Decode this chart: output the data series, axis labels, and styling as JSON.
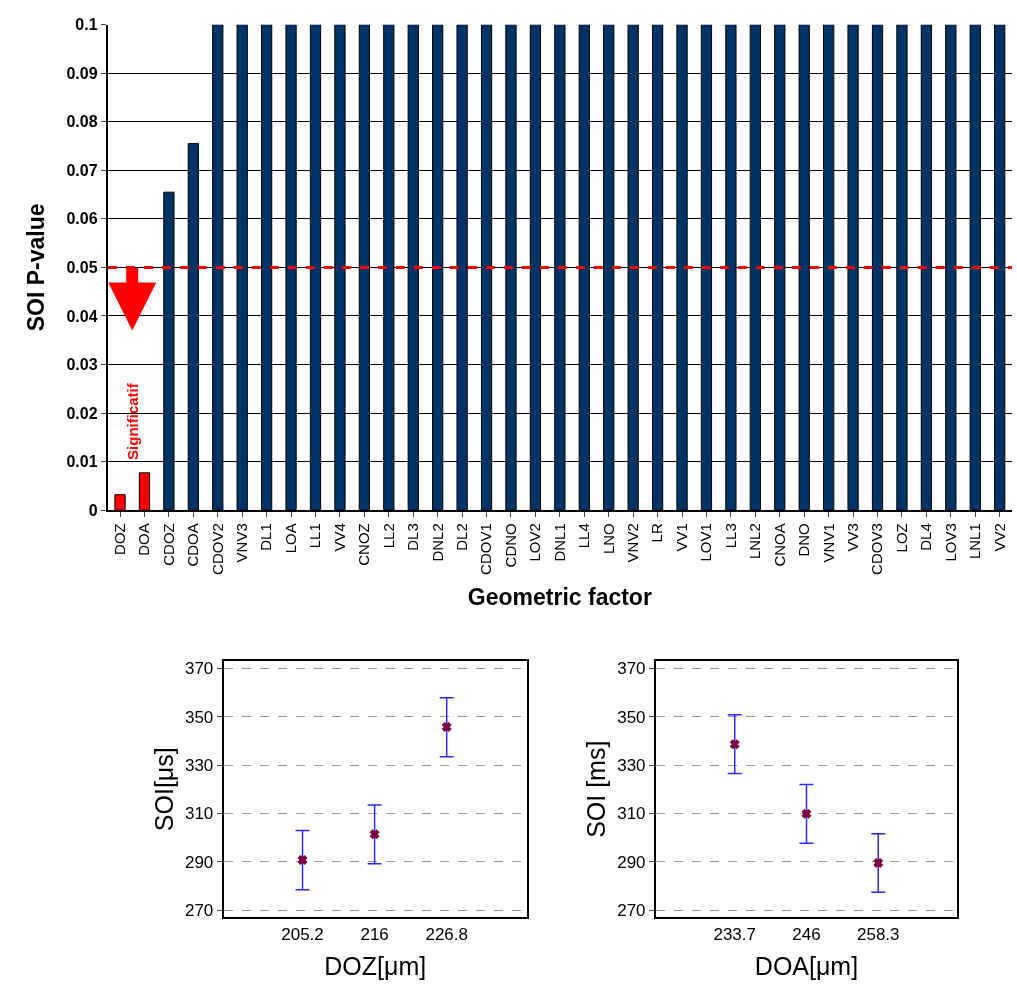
{
  "chart_data": [
    {
      "type": "bar",
      "xlabel": "Geometric factor",
      "ylabel": "SOI P-value",
      "categories": [
        "DOZ",
        "DOA",
        "CDOZ",
        "CDOA",
        "CDOV2",
        "VNV3",
        "DL1",
        "LOA",
        "LL1",
        "VV4",
        "CNOZ",
        "LL2",
        "DL3",
        "DNL2",
        "DL2",
        "CDOV1",
        "CDNO",
        "LOV2",
        "DNL1",
        "LL4",
        "LNO",
        "VNV2",
        "LR",
        "VV1",
        "LOV1",
        "LL3",
        "LNL2",
        "CNOA",
        "DNO",
        "VNV1",
        "VV3",
        "CDOV3",
        "LOZ",
        "DL4",
        "LOV3",
        "LNL1",
        "VV2"
      ],
      "values": [
        0.0032,
        0.0077,
        0.0655,
        0.0755,
        0.1,
        0.1,
        0.1,
        0.1,
        0.1,
        0.1,
        0.1,
        0.1,
        0.1,
        0.1,
        0.1,
        0.1,
        0.1,
        0.1,
        0.1,
        0.1,
        0.1,
        0.1,
        0.1,
        0.1,
        0.1,
        0.1,
        0.1,
        0.1,
        0.1,
        0.1,
        0.1,
        0.1,
        0.1,
        0.1,
        0.1,
        0.1,
        0.1
      ],
      "colors": [
        "#ff0000",
        "#ff0000",
        "#003366",
        "#003366",
        "#003366",
        "#003366",
        "#003366",
        "#003366",
        "#003366",
        "#003366",
        "#003366",
        "#003366",
        "#003366",
        "#003366",
        "#003366",
        "#003366",
        "#003366",
        "#003366",
        "#003366",
        "#003366",
        "#003366",
        "#003366",
        "#003366",
        "#003366",
        "#003366",
        "#003366",
        "#003366",
        "#003366",
        "#003366",
        "#003366",
        "#003366",
        "#003366",
        "#003366",
        "#003366",
        "#003366",
        "#003366",
        "#003366"
      ],
      "ylim": [
        0,
        0.1
      ],
      "yticks": [
        0,
        0.01,
        0.02,
        0.03,
        0.04,
        0.05,
        0.06,
        0.07,
        0.08,
        0.09,
        0.1
      ],
      "grid": "y",
      "ref_lines": [
        {
          "axis": "y",
          "value": 0.05,
          "color": "#ff0000",
          "line_style": "dashed"
        }
      ],
      "annotations": [
        "Significatif"
      ]
    },
    {
      "type": "scatter",
      "xlabel": "DOZ[μm]",
      "ylabel": "SOI[μs]",
      "x": [
        205.2,
        216,
        226.8
      ],
      "values": [
        290.8,
        301.4,
        345.7
      ],
      "errors": [
        [
          278.5,
          303
        ],
        [
          289.2,
          313.5
        ],
        [
          333.4,
          357.8
        ]
      ],
      "color": "#800040",
      "marker": "cross",
      "xlim": [
        193.4,
        238.8
      ],
      "xticks": [
        205.2,
        216,
        226.8
      ],
      "ylim": [
        267,
        373
      ],
      "yticks": [
        270,
        290,
        310,
        330,
        350,
        370
      ],
      "grid": "y"
    },
    {
      "type": "scatter",
      "xlabel": "DOA[μm]",
      "ylabel": "SOI [ms]",
      "x": [
        233.7,
        246,
        258.3
      ],
      "values": [
        338.6,
        309.9,
        289.5
      ],
      "errors": [
        [
          326.5,
          350.8
        ],
        [
          297.7,
          322
        ],
        [
          277.4,
          301.6
        ]
      ],
      "color": "#800040",
      "marker": "cross",
      "xlim": [
        220.2,
        271.8
      ],
      "xticks": [
        233.7,
        246,
        258.3
      ],
      "ylim": [
        267,
        373
      ],
      "yticks": [
        270,
        290,
        310,
        330,
        350,
        370
      ],
      "grid": "y"
    }
  ]
}
